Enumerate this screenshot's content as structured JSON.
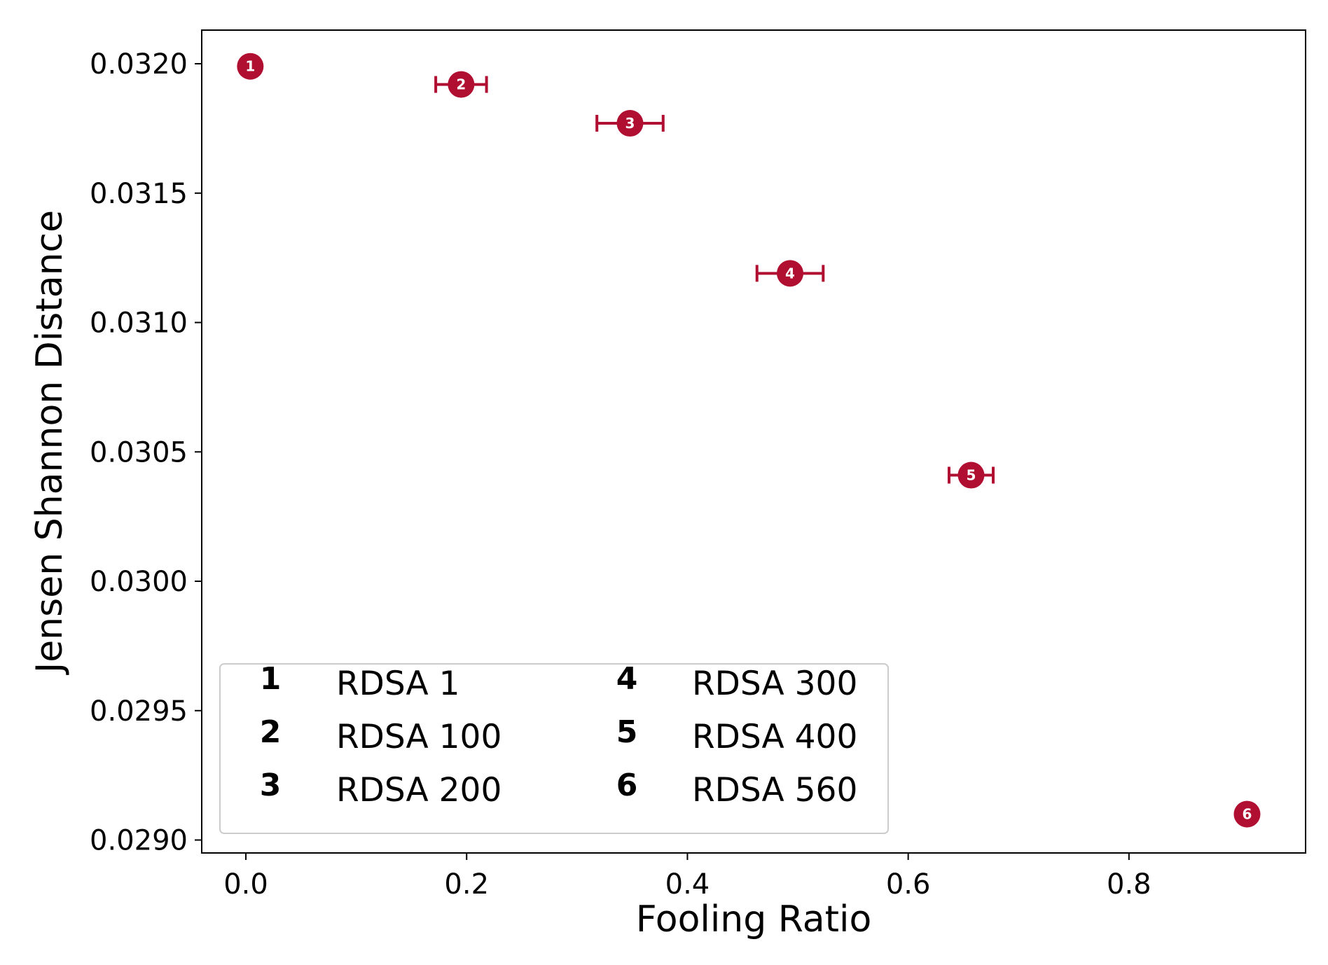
{
  "chart_data": {
    "type": "scatter",
    "xlabel": "Fooling Ratio",
    "ylabel": "Jensen Shannon Distance",
    "xlim": [
      -0.04,
      0.96
    ],
    "ylim": [
      0.02895,
      0.03213
    ],
    "xticks": [
      "0.0",
      "0.2",
      "0.4",
      "0.6",
      "0.8"
    ],
    "xtick_values": [
      0.0,
      0.2,
      0.4,
      0.6,
      0.8
    ],
    "yticks": [
      "0.0290",
      "0.0295",
      "0.0300",
      "0.0305",
      "0.0310",
      "0.0315",
      "0.0320"
    ],
    "ytick_values": [
      0.029,
      0.0295,
      0.03,
      0.0305,
      0.031,
      0.0315,
      0.032
    ],
    "grid": false,
    "legend_position": "lower-left",
    "color": "#B00F32",
    "points": [
      {
        "id": "1",
        "name": "RDSA 1",
        "x": 0.004,
        "y": 0.03199,
        "xerr": 0.0
      },
      {
        "id": "2",
        "name": "RDSA 100",
        "x": 0.195,
        "y": 0.03192,
        "xerr": 0.023
      },
      {
        "id": "3",
        "name": "RDSA 200",
        "x": 0.348,
        "y": 0.03177,
        "xerr": 0.03
      },
      {
        "id": "4",
        "name": "RDSA 300",
        "x": 0.493,
        "y": 0.03119,
        "xerr": 0.03
      },
      {
        "id": "5",
        "name": "RDSA 400",
        "x": 0.657,
        "y": 0.03041,
        "xerr": 0.02
      },
      {
        "id": "6",
        "name": "RDSA 560",
        "x": 0.907,
        "y": 0.0291,
        "xerr": 0.0
      }
    ]
  }
}
